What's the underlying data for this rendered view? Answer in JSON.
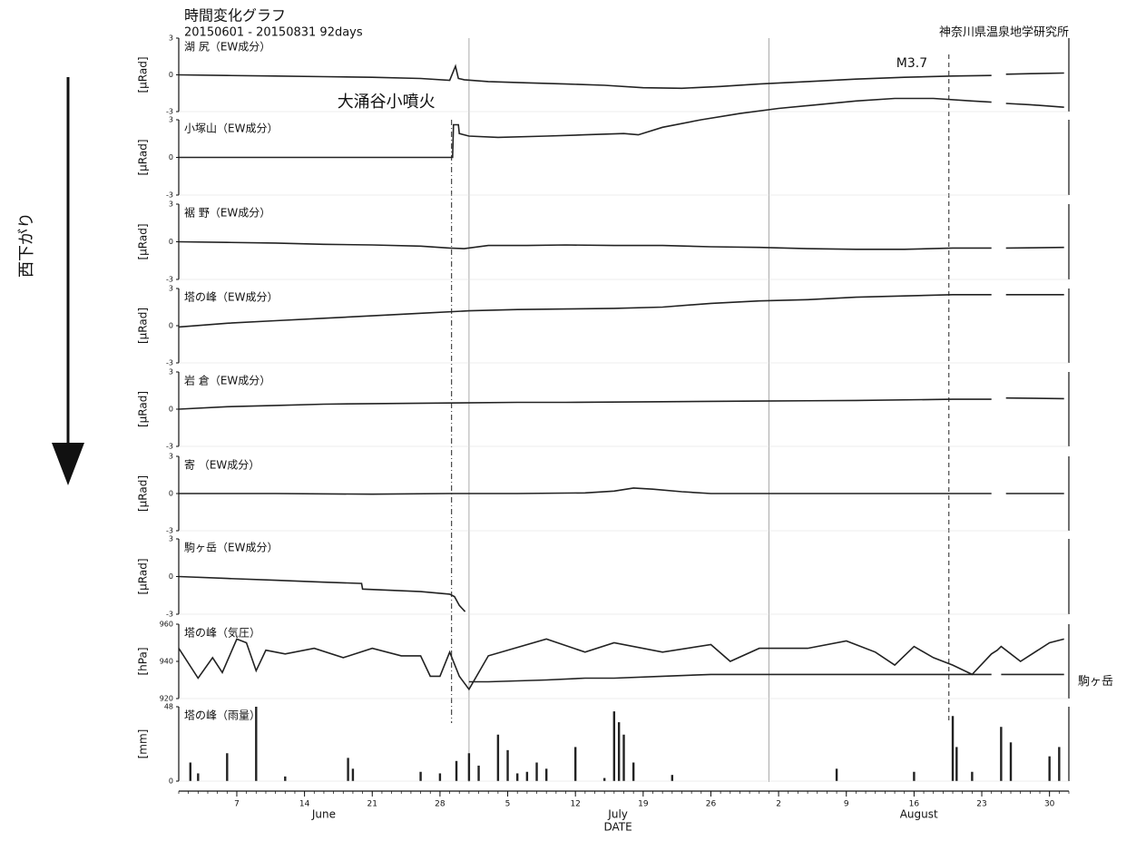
{
  "title": "時間変化グラフ",
  "subtitle": "20150601 - 20150831 92days",
  "source": "神奈川県温泉地学研究所",
  "side_label": "西下がり",
  "events": [
    {
      "label": "大涌谷小噴火",
      "x": 28.2
    },
    {
      "label": "M3.7",
      "x": 79.6
    }
  ],
  "chart_data": [
    {
      "type": "line",
      "title": "湖 尻（EW成分）",
      "ylabel": "[μRad]",
      "xlim": [
        0,
        92
      ],
      "ylim": [
        -3,
        3
      ],
      "yticks": [
        -3,
        0,
        3
      ],
      "x": [
        0,
        5,
        10,
        15,
        20,
        25,
        28,
        28.6,
        28.9,
        29.5,
        32,
        36,
        40,
        44,
        48,
        52,
        56,
        60,
        65,
        70,
        75,
        80,
        84,
        84.6,
        85.5,
        88,
        91.5
      ],
      "series": [
        {
          "color": "#222",
          "values": [
            0,
            -0.05,
            -0.1,
            -0.15,
            -0.2,
            -0.3,
            -0.45,
            0.7,
            -0.3,
            -0.4,
            -0.55,
            -0.65,
            -0.75,
            -0.85,
            -1.05,
            -1.1,
            -0.95,
            -0.75,
            -0.55,
            -0.35,
            -0.2,
            -0.1,
            -0.05,
            null,
            0.05,
            0.1,
            0.15
          ]
        }
      ]
    },
    {
      "type": "line",
      "title": "小塚山（EW成分）",
      "ylabel": "[μRad]",
      "xlim": [
        0,
        92
      ],
      "ylim": [
        -3,
        3
      ],
      "yticks": [
        -3,
        0,
        3
      ],
      "x": [
        0,
        10,
        20,
        28.3,
        28.4,
        28.9,
        29.0,
        30,
        33,
        38,
        42,
        46,
        47.5,
        50,
        54,
        58,
        62,
        66,
        70,
        74,
        78,
        82,
        84,
        84.6,
        85.5,
        88,
        91.5
      ],
      "series": [
        {
          "color": "#222",
          "values": [
            0,
            0,
            0,
            0,
            2.6,
            2.6,
            1.9,
            1.7,
            1.6,
            1.7,
            1.8,
            1.9,
            1.8,
            2.4,
            3.0,
            3.5,
            3.9,
            4.2,
            4.5,
            4.7,
            4.7,
            4.5,
            4.4,
            null,
            4.3,
            4.2,
            4.0
          ]
        }
      ]
    },
    {
      "type": "line",
      "title": "裾 野（EW成分）",
      "ylabel": "[μRad]",
      "xlim": [
        0,
        92
      ],
      "ylim": [
        -3,
        3
      ],
      "yticks": [
        -3,
        0,
        3
      ],
      "x": [
        0,
        5,
        10,
        15,
        20,
        25,
        28,
        29.5,
        32,
        36,
        40,
        45,
        50,
        55,
        60,
        65,
        70,
        75,
        80,
        84,
        84.6,
        85.5,
        91.5
      ],
      "series": [
        {
          "color": "#222",
          "values": [
            0,
            -0.05,
            -0.1,
            -0.2,
            -0.25,
            -0.35,
            -0.5,
            -0.55,
            -0.3,
            -0.3,
            -0.25,
            -0.3,
            -0.3,
            -0.4,
            -0.45,
            -0.55,
            -0.6,
            -0.6,
            -0.5,
            -0.5,
            null,
            -0.5,
            -0.45
          ]
        }
      ]
    },
    {
      "type": "line",
      "title": "塔の峰（EW成分）",
      "ylabel": "[μRad]",
      "xlim": [
        0,
        92
      ],
      "ylim": [
        -3,
        3
      ],
      "yticks": [
        -3,
        0,
        3
      ],
      "x": [
        0,
        5,
        10,
        15,
        20,
        25,
        30,
        35,
        40,
        45,
        50,
        55,
        60,
        65,
        70,
        75,
        80,
        84,
        84.6,
        85.5,
        91.5
      ],
      "series": [
        {
          "color": "#222",
          "values": [
            -0.1,
            0.2,
            0.4,
            0.6,
            0.8,
            1.0,
            1.2,
            1.3,
            1.35,
            1.4,
            1.5,
            1.8,
            2.0,
            2.1,
            2.3,
            2.4,
            2.5,
            2.5,
            null,
            2.5,
            2.5
          ]
        }
      ]
    },
    {
      "type": "line",
      "title": "岩 倉（EW成分）",
      "ylabel": "[μRad]",
      "xlim": [
        0,
        92
      ],
      "ylim": [
        -3,
        3
      ],
      "yticks": [
        -3,
        0,
        3
      ],
      "x": [
        0,
        5,
        10,
        15,
        20,
        28,
        35,
        40,
        50,
        60,
        70,
        80,
        84,
        84.6,
        85.5,
        91.5
      ],
      "series": [
        {
          "color": "#222",
          "values": [
            0,
            0.2,
            0.3,
            0.4,
            0.45,
            0.5,
            0.55,
            0.55,
            0.6,
            0.65,
            0.7,
            0.8,
            0.8,
            null,
            0.9,
            0.85
          ]
        }
      ]
    },
    {
      "type": "line",
      "title": "寄 （EW成分）",
      "ylabel": "[μRad]",
      "xlim": [
        0,
        92
      ],
      "ylim": [
        -3,
        3
      ],
      "yticks": [
        -3,
        0,
        3
      ],
      "x": [
        0,
        10,
        20,
        28,
        35,
        42,
        45,
        47,
        49,
        52,
        55,
        60,
        70,
        80,
        84,
        84.6,
        85.5,
        91.5
      ],
      "series": [
        {
          "color": "#222",
          "values": [
            0,
            0,
            -0.05,
            0,
            0,
            0.05,
            0.2,
            0.45,
            0.35,
            0.15,
            0,
            0,
            0,
            0,
            0,
            null,
            0,
            0
          ]
        }
      ]
    },
    {
      "type": "line",
      "title": "駒ヶ岳（EW成分）",
      "ylabel": "[μRad]",
      "xlim": [
        0,
        92
      ],
      "ylim": [
        -3,
        3
      ],
      "yticks": [
        -3,
        0,
        3
      ],
      "x": [
        0,
        5,
        10,
        15,
        18.9,
        19,
        22,
        25,
        28,
        28.5,
        29,
        29.6
      ],
      "series": [
        {
          "color": "#222",
          "values": [
            0,
            -0.15,
            -0.3,
            -0.45,
            -0.55,
            -1.0,
            -1.1,
            -1.2,
            -1.4,
            -1.6,
            -2.3,
            -2.8
          ]
        }
      ]
    },
    {
      "type": "line",
      "title": "塔の峰（気圧）",
      "ylabel": "[hPa]",
      "xlim": [
        0,
        92
      ],
      "ylim": [
        920,
        960
      ],
      "yticks": [
        920,
        940,
        960
      ],
      "x": [
        0,
        2,
        3.5,
        4.5,
        6,
        7,
        8,
        9,
        11,
        14,
        17,
        20,
        23,
        25,
        26,
        27,
        28,
        29,
        30,
        32,
        38,
        42,
        45,
        50,
        55,
        57,
        60,
        65,
        69,
        72,
        74,
        76,
        78,
        80,
        82,
        84,
        84.6,
        85,
        87,
        90,
        91.5
      ],
      "series": [
        {
          "color": "#222",
          "values": [
            947,
            931,
            942,
            934,
            952,
            950,
            935,
            946,
            944,
            947,
            942,
            947,
            943,
            943,
            932,
            932,
            945,
            932,
            925,
            943,
            952,
            945,
            950,
            945,
            949,
            940,
            947,
            947,
            951,
            945,
            938,
            948,
            942,
            938,
            933,
            944,
            946,
            948,
            940,
            950,
            952
          ]
        },
        {
          "name": "駒ヶ岳",
          "color": "#222",
          "values": [
            null,
            null,
            null,
            null,
            null,
            null,
            null,
            null,
            null,
            null,
            null,
            null,
            null,
            null,
            null,
            null,
            null,
            null,
            929,
            929,
            930,
            931,
            931,
            932,
            933,
            933,
            933,
            933,
            933,
            933,
            933,
            933,
            933,
            933,
            933,
            933,
            null,
            933,
            933,
            933,
            933
          ]
        }
      ]
    },
    {
      "type": "bar",
      "title": "塔の峰（雨量）",
      "ylabel": "[mm]",
      "xlim": [
        0,
        92
      ],
      "ylim": [
        0,
        48
      ],
      "yticks": [
        0,
        48
      ],
      "x": [
        1.2,
        2,
        5,
        8,
        11,
        17.5,
        18,
        25,
        27,
        28.7,
        30,
        31,
        33,
        34,
        35,
        36,
        37,
        38,
        41,
        44,
        45,
        45.5,
        46,
        47,
        51,
        68,
        76,
        80,
        80.4,
        82,
        85,
        86,
        90,
        91
      ],
      "values": [
        12,
        5,
        18,
        48,
        3,
        15,
        8,
        6,
        5,
        13,
        18,
        10,
        30,
        20,
        5,
        6,
        12,
        8,
        22,
        2,
        45,
        38,
        30,
        12,
        4,
        8,
        6,
        42,
        22,
        6,
        35,
        25,
        16,
        22
      ],
      "color": "#222",
      "xlabel": "DATE",
      "xticks": [
        {
          "value": 6,
          "label": "7"
        },
        {
          "value": 13,
          "label": "14"
        },
        {
          "value": 20,
          "label": "21"
        },
        {
          "value": 27,
          "label": "28"
        },
        {
          "value": 34,
          "label": "5"
        },
        {
          "value": 41,
          "label": "12"
        },
        {
          "value": 48,
          "label": "19"
        },
        {
          "value": 55,
          "label": "26"
        },
        {
          "value": 62,
          "label": "2"
        },
        {
          "value": 69,
          "label": "9"
        },
        {
          "value": 76,
          "label": "16"
        },
        {
          "value": 83,
          "label": "23"
        },
        {
          "value": 90,
          "label": "30"
        }
      ],
      "month_labels": [
        {
          "label": "June",
          "value": 15
        },
        {
          "label": "July",
          "value": 45.4
        },
        {
          "label": "August",
          "value": 76.5
        }
      ]
    }
  ]
}
